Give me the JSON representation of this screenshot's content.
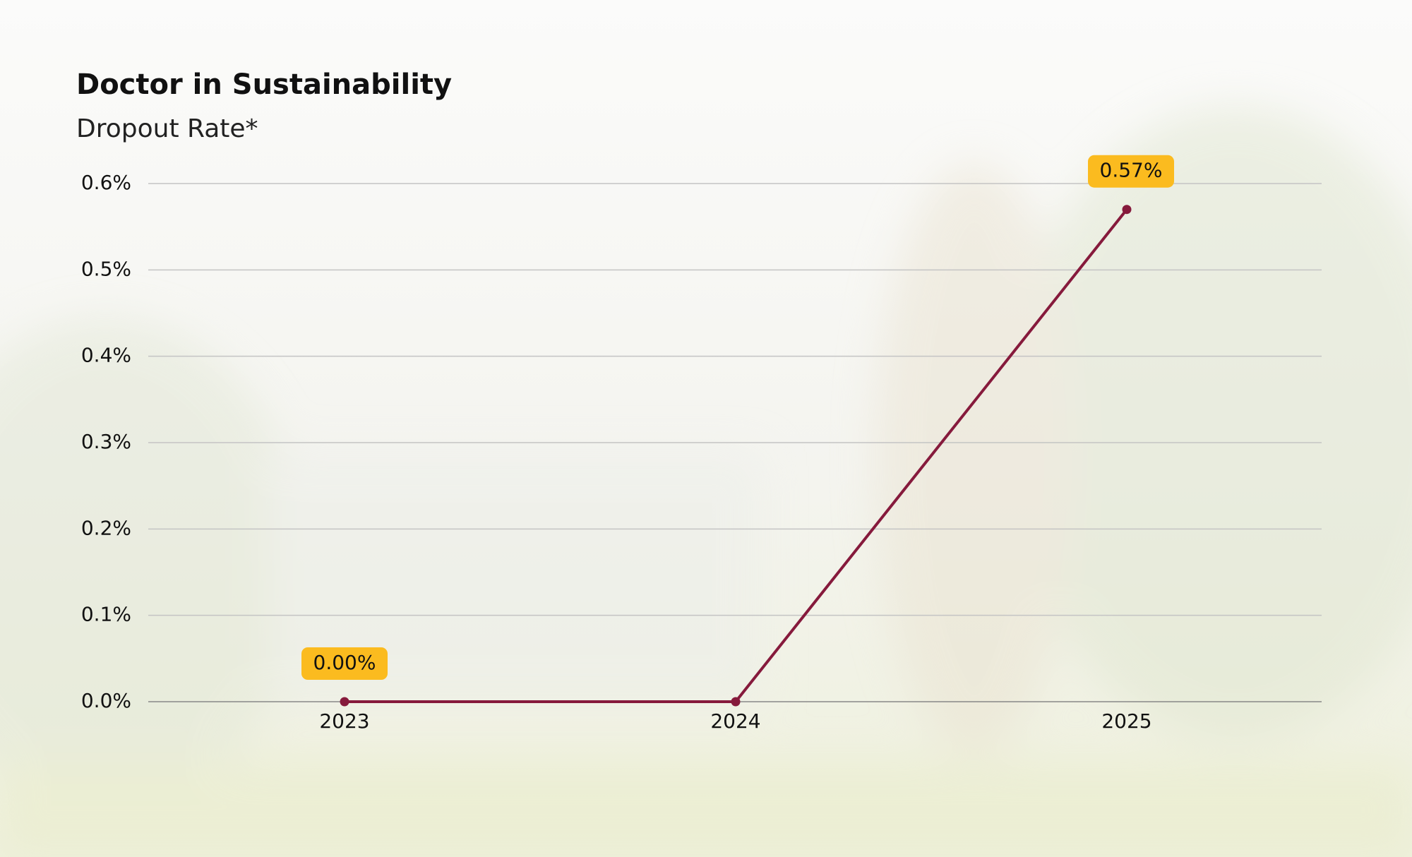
{
  "chart_data": {
    "type": "line",
    "title": "Doctor in Sustainability",
    "subtitle": "Dropout Rate*",
    "categories": [
      "2023",
      "2024",
      "2025"
    ],
    "values": [
      0,
      0,
      0.57
    ],
    "value_labels": [
      "0.00%",
      null,
      "0.57%"
    ],
    "color": "#861a3c",
    "ylim": [
      0,
      0.6
    ],
    "yticks": [
      {
        "value": 0,
        "label": "0.0%"
      },
      {
        "value": 0.1,
        "label": "0.1%"
      },
      {
        "value": 0.2,
        "label": "0.2%"
      },
      {
        "value": 0.3,
        "label": "0.3%"
      },
      {
        "value": 0.4,
        "label": "0.4%"
      },
      {
        "value": 0.5,
        "label": "0.5%"
      },
      {
        "value": 0.6,
        "label": "0.6%"
      }
    ],
    "grid": true
  }
}
